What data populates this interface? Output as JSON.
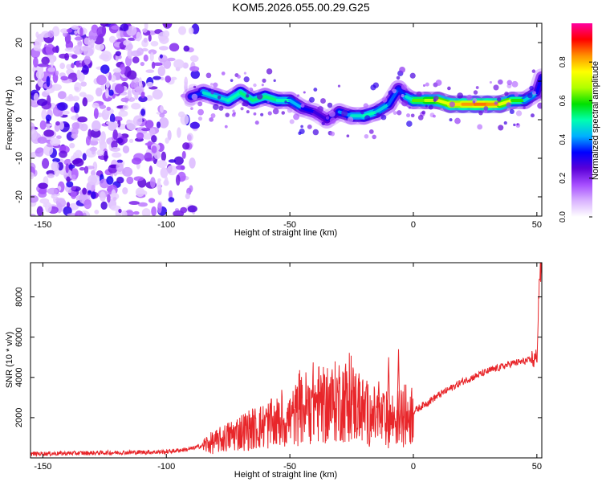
{
  "title": "KOM5.2026.055.00.29.G25",
  "chart_data": [
    {
      "type": "heatmap",
      "xlabel": "Height of straight line (km)",
      "ylabel": "Frequency (Hz)",
      "xlim": [
        -155,
        52
      ],
      "ylim": [
        -25,
        25
      ],
      "xticks": [
        -150,
        -100,
        -50,
        0,
        50
      ],
      "yticks": [
        -20,
        -10,
        0,
        10,
        20
      ],
      "grid": false,
      "colorbar": {
        "label": "Normalized spectral amplitude",
        "range": [
          0.0,
          1.0
        ],
        "ticks": [
          0.0,
          0.2,
          0.4,
          0.6,
          0.8
        ],
        "colors": [
          "#ffffff",
          "#d9b3ff",
          "#a64dff",
          "#5a00d8",
          "#0000ff",
          "#00b0ff",
          "#00ffb0",
          "#00e000",
          "#b0ff00",
          "#ffff00",
          "#ff9000",
          "#ff0000",
          "#ff00a0"
        ]
      },
      "noise_region": {
        "x_range": [
          -155,
          -88
        ],
        "y_range": [
          -25,
          25
        ]
      },
      "ridge": {
        "x": [
          -90,
          -85,
          -80,
          -75,
          -70,
          -65,
          -60,
          -55,
          -50,
          -45,
          -40,
          -35,
          -30,
          -25,
          -20,
          -15,
          -10,
          -6,
          -3,
          0,
          5,
          10,
          15,
          20,
          25,
          30,
          35,
          40,
          45,
          50,
          52
        ],
        "y": [
          6,
          7,
          6,
          5,
          7,
          5,
          6,
          5,
          5,
          3,
          2,
          0,
          2,
          1,
          1,
          2,
          4,
          8,
          6,
          5,
          5,
          5,
          4,
          4,
          4,
          4,
          4,
          5,
          5,
          7,
          11
        ],
        "amplitude": [
          0.25,
          0.45,
          0.5,
          0.45,
          0.55,
          0.5,
          0.55,
          0.5,
          0.5,
          0.35,
          0.3,
          0.25,
          0.35,
          0.45,
          0.5,
          0.5,
          0.4,
          0.35,
          0.35,
          0.6,
          0.65,
          0.7,
          0.75,
          0.8,
          0.85,
          0.85,
          0.8,
          0.65,
          0.55,
          0.35,
          0.3
        ]
      }
    },
    {
      "type": "line",
      "xlabel": "Height of straight line (km)",
      "ylabel": "SNR (10 * v/v)",
      "xlim": [
        -155,
        52
      ],
      "ylim": [
        0,
        9700
      ],
      "xticks": [
        -150,
        -100,
        -50,
        0,
        50
      ],
      "yticks": [
        2000,
        4000,
        6000,
        8000
      ],
      "grid": false,
      "color": "#e8262a",
      "envelope_x": [
        -155,
        -100,
        -90,
        -80,
        -70,
        -60,
        -50,
        -45,
        -40,
        -35,
        -30,
        -25,
        -20,
        -15,
        -10,
        -5,
        0,
        10,
        20,
        30,
        40,
        50,
        51,
        52
      ],
      "envelope_y": [
        200,
        300,
        450,
        800,
        1300,
        1600,
        1900,
        2400,
        2800,
        2500,
        2900,
        2800,
        2300,
        2000,
        1900,
        2000,
        2300,
        3100,
        3800,
        4300,
        4700,
        4900,
        9000,
        9300
      ],
      "spikes": [
        {
          "x": -36,
          "y": 4100
        },
        {
          "x": -27,
          "y": 4300
        },
        {
          "x": -22,
          "y": 4200
        },
        {
          "x": -14,
          "y": 3800
        },
        {
          "x": -10,
          "y": 5000
        },
        {
          "x": -6,
          "y": 5400
        }
      ]
    }
  ]
}
